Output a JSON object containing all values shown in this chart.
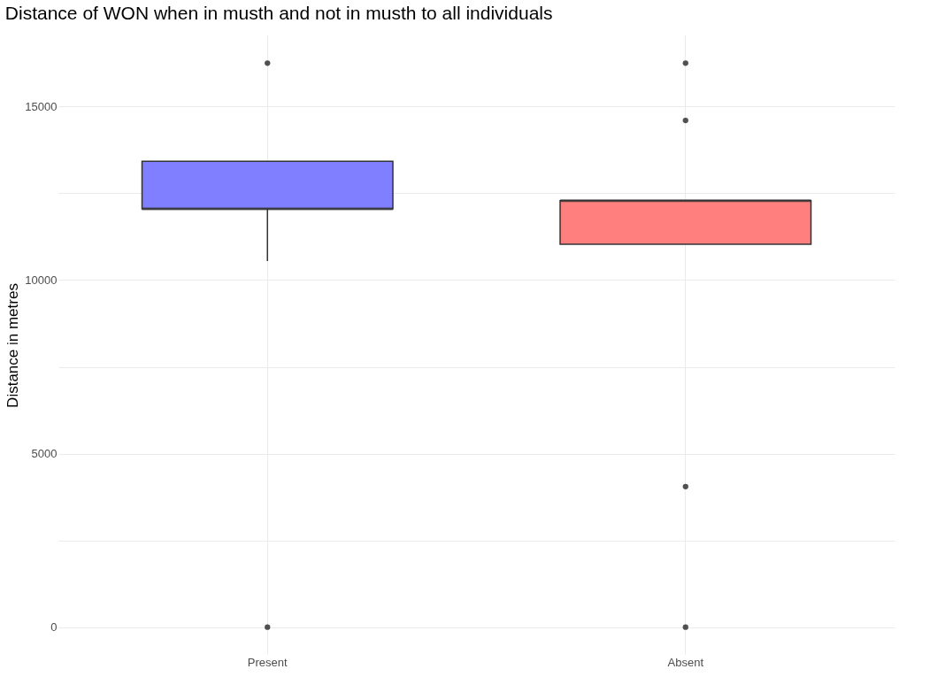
{
  "chart_data": {
    "type": "box",
    "title": "Distance of WON when in musth and not in musth to all individuals",
    "ylabel": "Distance in metres",
    "categories": [
      "Present",
      "Absent"
    ],
    "colors": [
      "#7f7fff",
      "#ff7f7f"
    ],
    "boxes": [
      {
        "low": 10550,
        "q1": 12050,
        "median": 12050,
        "q3": 13420,
        "high": 13420,
        "outliers": [
          16250,
          0
        ]
      },
      {
        "low": 11030,
        "q1": 11030,
        "median": 12290,
        "q3": 12290,
        "high": 12290,
        "outliers": [
          16250,
          14600,
          4050,
          0
        ]
      }
    ],
    "ylim": [
      -800,
      17050
    ],
    "yticks": [
      0,
      {
        "value": 2500,
        "label": null
      },
      5000,
      {
        "value": 7500,
        "label": null
      },
      10000,
      {
        "value": 12500,
        "label": null
      },
      15000
    ],
    "grid": true
  }
}
